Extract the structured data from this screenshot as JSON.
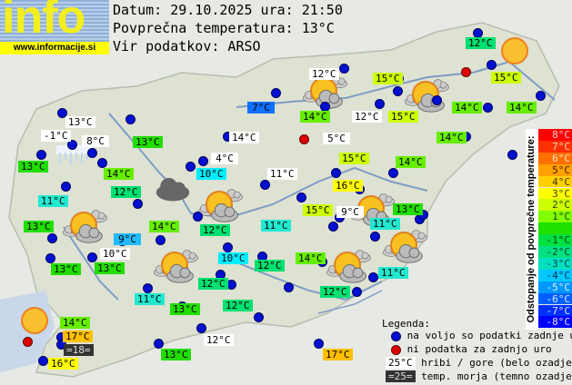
{
  "logo": {
    "word": "info",
    "url": "www.informacije.si"
  },
  "header": {
    "date_line": "Datum: 29.10.2025 ura: 21:50",
    "avg_temp_line": "Povprečna temperatura: 13°C",
    "source_line": "Vir podatkov: ARSO"
  },
  "stations": [
    {
      "text": "12°C",
      "bg": "#00e070"
    },
    {
      "text": "12°C",
      "bg": "#ffffff"
    },
    {
      "text": "15°C",
      "bg": "#ccff00"
    },
    {
      "text": "15°C",
      "bg": "#ccff00"
    },
    {
      "text": "7°C",
      "bg": "#1070ff"
    },
    {
      "text": "14°C",
      "bg": "#66ee00"
    },
    {
      "text": "12°C",
      "bg": "#ffffff"
    },
    {
      "text": "15°C",
      "bg": "#ccff00"
    },
    {
      "text": "14°C",
      "bg": "#66ee00"
    },
    {
      "text": "14°C",
      "bg": "#66ee00"
    },
    {
      "text": "13°C",
      "bg": "#ffffff"
    },
    {
      "text": "-1°C",
      "bg": "#ffffff"
    },
    {
      "text": "8°C",
      "bg": "#ffffff"
    },
    {
      "text": "13°C",
      "bg": "#22dd00"
    },
    {
      "text": "14°C",
      "bg": "#ffffff"
    },
    {
      "text": "5°C",
      "bg": "#ffffff"
    },
    {
      "text": "14°C",
      "bg": "#66ee00"
    },
    {
      "text": "13°C",
      "bg": "#22dd00"
    },
    {
      "text": "4°C",
      "bg": "#ffffff"
    },
    {
      "text": "15°C",
      "bg": "#ccff00"
    },
    {
      "text": "14°C",
      "bg": "#66ee00"
    },
    {
      "text": "14°C",
      "bg": "#66ee00"
    },
    {
      "text": "10°C",
      "bg": "#00eeff"
    },
    {
      "text": "11°C",
      "bg": "#ffffff"
    },
    {
      "text": "16°C",
      "bg": "#ffff00"
    },
    {
      "text": "12°C",
      "bg": "#00e070"
    },
    {
      "text": "11°C",
      "bg": "#22e8d0"
    },
    {
      "text": "15°C",
      "bg": "#ccff00"
    },
    {
      "text": "9°C",
      "bg": "#ffffff"
    },
    {
      "text": "13°C",
      "bg": "#22dd00"
    },
    {
      "text": "14°C",
      "bg": "#66ee00"
    },
    {
      "text": "12°C",
      "bg": "#00e070"
    },
    {
      "text": "11°C",
      "bg": "#22e8d0"
    },
    {
      "text": "11°C",
      "bg": "#22e8d0"
    },
    {
      "text": "13°C",
      "bg": "#22dd00"
    },
    {
      "text": "9°C",
      "bg": "#22bbff"
    },
    {
      "text": "10°C",
      "bg": "#ffffff"
    },
    {
      "text": "14°C",
      "bg": "#66ee00"
    },
    {
      "text": "10°C",
      "bg": "#00eeff"
    },
    {
      "text": "12°C",
      "bg": "#00e070"
    },
    {
      "text": "12°C",
      "bg": "#00e070"
    },
    {
      "text": "11°C",
      "bg": "#22e8d0"
    },
    {
      "text": "13°C",
      "bg": "#22dd00"
    },
    {
      "text": "13°C",
      "bg": "#22dd00"
    },
    {
      "text": "12°C",
      "bg": "#00e070"
    },
    {
      "text": "11°C",
      "bg": "#22e8d0"
    },
    {
      "text": "13°C",
      "bg": "#22dd00"
    },
    {
      "text": "12°C",
      "bg": "#00e070"
    },
    {
      "text": "14°C",
      "bg": "#66ee00"
    },
    {
      "text": "17°C",
      "bg": "#ffc000"
    },
    {
      "text": "=18=",
      "bg": "#333333"
    },
    {
      "text": "16°C",
      "bg": "#ffff00"
    },
    {
      "text": "13°C",
      "bg": "#22dd00"
    },
    {
      "text": "12°C",
      "bg": "#ffffff"
    },
    {
      "text": "17°C",
      "bg": "#ffc000"
    }
  ],
  "scale": {
    "title": "Odstopanje od povprečne temperature:",
    "items": [
      {
        "text": "8°C",
        "bg": "#ff0000",
        "fg": "#ffd0d0"
      },
      {
        "text": "7°C",
        "bg": "#ff3000",
        "fg": "#ffd0c0"
      },
      {
        "text": "6°C",
        "bg": "#ff7000",
        "fg": "#ffe0c0"
      },
      {
        "text": "5°C",
        "bg": "#ffa000",
        "fg": "#402000"
      },
      {
        "text": "4°C",
        "bg": "#ffd000",
        "fg": "#403000"
      },
      {
        "text": "3°C",
        "bg": "#ffff00",
        "fg": "#404000"
      },
      {
        "text": "2°C",
        "bg": "#ccff00",
        "fg": "#304000"
      },
      {
        "text": "1°C",
        "bg": "#80ff00",
        "fg": "#204000"
      },
      {
        "text": "",
        "bg": "#20e000",
        "fg": "#000"
      },
      {
        "text": "-1°C",
        "bg": "#00e040",
        "fg": "#004010"
      },
      {
        "text": "-2°C",
        "bg": "#00e080",
        "fg": "#004020"
      },
      {
        "text": "-3°C",
        "bg": "#00e0c0",
        "fg": "#004040"
      },
      {
        "text": "-4°C",
        "bg": "#00c8ff",
        "fg": "#003040"
      },
      {
        "text": "-5°C",
        "bg": "#0098ff",
        "fg": "#e0f0ff"
      },
      {
        "text": "-6°C",
        "bg": "#0060ff",
        "fg": "#e0e8ff"
      },
      {
        "text": "-7°C",
        "bg": "#0030ff",
        "fg": "#e0e0ff"
      },
      {
        "text": "-8°C",
        "bg": "#0000ff",
        "fg": "#e0e0ff"
      }
    ]
  },
  "legend": {
    "title": "Legenda:",
    "blue_dot": "na voljo so podatki zadnje ure",
    "red_dot": "ni podatka za zadnjo uro",
    "mountain_sample": "25°C",
    "mountain_text": "hribi / gore (belo ozadje)",
    "sea_sample": "=25=",
    "sea_text": "temp. morja (temno ozadje)"
  }
}
